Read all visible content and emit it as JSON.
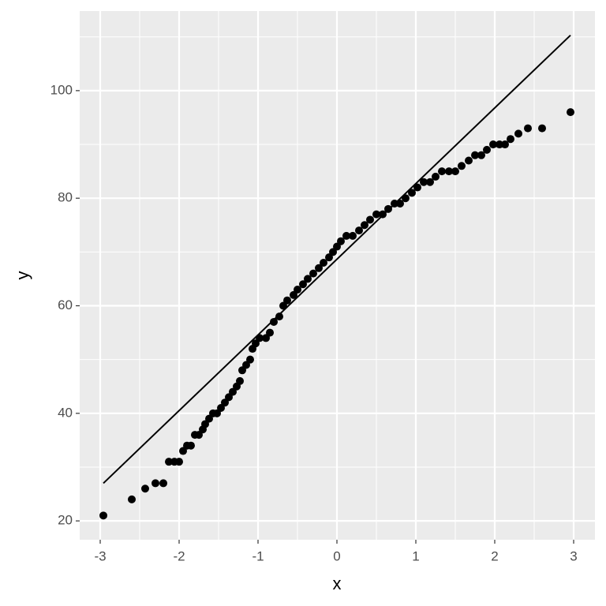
{
  "chart_data": {
    "type": "scatter",
    "x_label": "x",
    "y_label": "y",
    "xlim": [
      -3.26,
      3.27
    ],
    "ylim": [
      16.5,
      114.8
    ],
    "xticks": [
      -3,
      -2,
      -1,
      0,
      1,
      2,
      3
    ],
    "yticks": [
      20,
      40,
      60,
      80,
      100
    ],
    "grid": true,
    "minor_grid": true,
    "background": "#ebebeb",
    "series": [
      {
        "color": "#000000",
        "x": [
          -2.96,
          -2.6,
          -2.43,
          -2.3,
          -2.2,
          -2.13,
          -2.06,
          -2.0,
          -1.95,
          -1.9,
          -1.85,
          -1.8,
          -1.75,
          -1.7,
          -1.67,
          -1.62,
          -1.57,
          -1.52,
          -1.47,
          -1.42,
          -1.37,
          -1.32,
          -1.27,
          -1.23,
          -1.2,
          -1.15,
          -1.1,
          -1.07,
          -1.03,
          -0.98,
          -0.9,
          -0.85,
          -0.8,
          -0.73,
          -0.68,
          -0.63,
          -0.55,
          -0.5,
          -0.43,
          -0.37,
          -0.3,
          -0.23,
          -0.17,
          -0.1,
          -0.05,
          0,
          0.05,
          0.12,
          0.2,
          0.28,
          0.35,
          0.42,
          0.5,
          0.58,
          0.65,
          0.73,
          0.8,
          0.87,
          0.95,
          1.02,
          1.1,
          1.18,
          1.25,
          1.33,
          1.42,
          1.5,
          1.58,
          1.67,
          1.75,
          1.83,
          1.9,
          1.98,
          2.06,
          2.13,
          2.2,
          2.3,
          2.42,
          2.6,
          2.96
        ],
        "values": [
          21,
          24,
          26,
          27,
          27,
          31,
          31,
          31,
          33,
          34,
          34,
          36,
          36,
          37,
          38,
          39,
          40,
          40,
          41,
          42,
          43,
          44,
          45,
          46,
          48,
          49,
          50,
          52,
          53,
          54,
          54,
          55,
          57,
          58,
          60,
          61,
          62,
          63,
          64,
          65,
          66,
          67,
          68,
          69,
          70,
          71,
          72,
          73,
          73,
          74,
          75,
          76,
          77,
          77,
          78,
          79,
          79,
          80,
          81,
          82,
          83,
          83,
          84,
          85,
          85,
          85,
          86,
          87,
          88,
          88,
          89,
          90,
          90,
          90,
          91,
          92,
          93,
          93,
          96
        ]
      },
      {
        "type": "line",
        "color": "#000000",
        "x": [
          -2.96,
          2.96
        ],
        "values": [
          27,
          110.3
        ]
      }
    ]
  }
}
